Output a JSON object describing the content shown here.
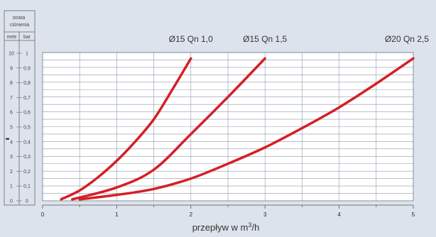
{
  "chart_data": {
    "type": "line",
    "ylabel": "strata ciśnienia",
    "y_unit_left": "metr",
    "y_unit_right": "bar",
    "y_ticks_metr": [
      "0",
      "1",
      "2",
      "3",
      "4",
      "5",
      "6",
      "7",
      "8",
      "9",
      "10"
    ],
    "y_ticks_bar": [
      "0",
      "0,1",
      "0,2",
      "0,3",
      "0,4",
      "0,5",
      "0,6",
      "0,7",
      "0,8",
      "0,9",
      "1"
    ],
    "xlabel": "przepływ w m³/h",
    "x_ticks": [
      "0",
      "1",
      "2",
      "3",
      "4",
      "5"
    ],
    "xlim": [
      0,
      5
    ],
    "ylim": [
      0,
      10
    ],
    "grid": true,
    "series": [
      {
        "name": "Ø15 Qn 1,0",
        "color": "#d42027",
        "x": [
          0.25,
          0.5,
          0.75,
          1.0,
          1.25,
          1.5,
          1.75,
          2.0
        ],
        "y": [
          0.1,
          0.7,
          1.6,
          2.7,
          4.0,
          5.5,
          7.5,
          9.6
        ]
      },
      {
        "name": "Ø15 Qn 1,5",
        "color": "#d42027",
        "x": [
          0.4,
          1.0,
          1.5,
          2.0,
          2.5,
          3.0
        ],
        "y": [
          0.1,
          0.9,
          2.1,
          4.5,
          7.0,
          9.6
        ]
      },
      {
        "name": "Ø20 Qn 2,5",
        "color": "#d42027",
        "x": [
          0.5,
          1.0,
          1.5,
          2.0,
          2.5,
          3.0,
          3.5,
          4.0,
          4.5,
          5.0
        ],
        "y": [
          0.1,
          0.4,
          0.8,
          1.5,
          2.5,
          3.6,
          4.9,
          6.3,
          7.9,
          9.6
        ]
      }
    ]
  }
}
